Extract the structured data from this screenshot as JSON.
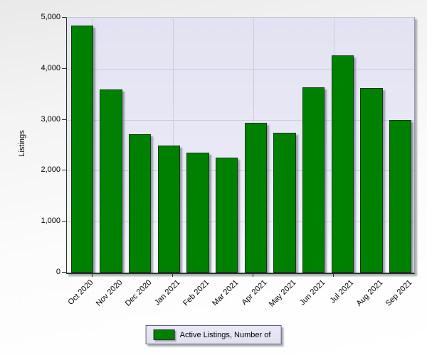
{
  "chart_data": {
    "type": "bar",
    "title": "",
    "xlabel": "",
    "ylabel": "Listings",
    "categories": [
      "Oct 2020",
      "Nov 2020",
      "Dec 2020",
      "Jan 2021",
      "Feb 2021",
      "Mar 2021",
      "Apr 2021",
      "May 2021",
      "Jun 2021",
      "Jul 2021",
      "Aug 2021",
      "Sep 2021"
    ],
    "series": [
      {
        "name": "Active Listings, Number of",
        "values": [
          4820,
          3560,
          2690,
          2470,
          2330,
          2230,
          2910,
          2720,
          3610,
          4230,
          3590,
          2970
        ]
      }
    ],
    "ylim": [
      0,
      5000
    ],
    "ytick_values": [
      0,
      1000,
      2000,
      3000,
      4000,
      5000
    ],
    "ytick_labels": [
      "0",
      "1,000",
      "2,000",
      "3,000",
      "4,000",
      "5,000"
    ],
    "grid": true,
    "legend_position": "bottom",
    "bar_color": "#008000"
  },
  "y_axis": {
    "title": "Listings"
  },
  "legend": {
    "label": "Active Listings, Number of",
    "swatch_color": "#008000"
  }
}
